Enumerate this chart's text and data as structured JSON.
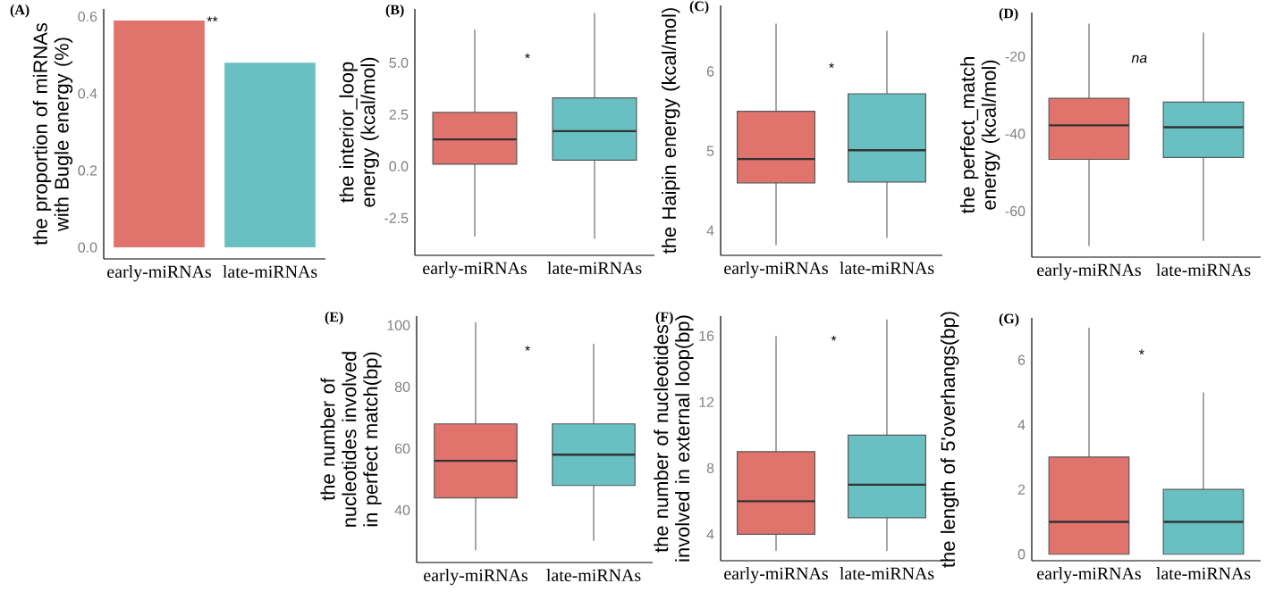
{
  "chart_data": [
    {
      "type": "bar",
      "title": "(A)",
      "ylabel": "the proportion of miRNAs with Bugle energy (%)",
      "categories": [
        "early-miRNAs",
        "late-miRNAs"
      ],
      "values": [
        0.59,
        0.48
      ],
      "colors": [
        "#e0736b",
        "#68c0c3"
      ],
      "ylim": [
        -0.03,
        0.62
      ],
      "yticks": [
        {
          "value": 0,
          "label": "0.0"
        },
        {
          "value": 0.2,
          "label": "0.2"
        },
        {
          "value": 0.4,
          "label": "0.4"
        },
        {
          "value": 0.6,
          "label": "0.6"
        }
      ],
      "annotations": [
        "**"
      ]
    },
    {
      "type": "box",
      "title": "(B)",
      "ylabel": "the interior_loop energy (kcal/mol)",
      "categories": [
        "early-miRNAs",
        "late-miRNAs"
      ],
      "colors": [
        "#e0736b",
        "#68c0c3"
      ],
      "boxes": [
        {
          "low": -3.4,
          "q1": 0.1,
          "median": 1.3,
          "q3": 2.6,
          "high": 6.6
        },
        {
          "low": -3.5,
          "q1": 0.3,
          "median": 1.7,
          "q3": 3.3,
          "high": 7.4
        }
      ],
      "ylim": [
        -4.3,
        7.6
      ],
      "yticks": [
        -2.5,
        {
          "value": 0,
          "label": "0.0"
        },
        2.5,
        {
          "value": 5,
          "label": "5.0"
        }
      ],
      "annotations": [
        "*"
      ]
    },
    {
      "type": "box",
      "title": "(C)",
      "ylabel": "the Haipin energy (kcal/mol)",
      "categories": [
        "early-miRNAs",
        "late-miRNAs"
      ],
      "colors": [
        "#e0736b",
        "#68c0c3"
      ],
      "boxes": [
        {
          "low": 3.82,
          "q1": 4.6,
          "median": 4.9,
          "q3": 5.5,
          "high": 6.6
        },
        {
          "low": 3.91,
          "q1": 4.61,
          "median": 5.01,
          "q3": 5.72,
          "high": 6.51
        }
      ],
      "ylim": [
        3.69,
        6.83
      ],
      "yticks": [
        4,
        5,
        6
      ],
      "annotations": [
        "*"
      ]
    },
    {
      "type": "box",
      "title": "(D)",
      "ylabel": "the perfect_match energy (kcal/mol)",
      "categories": [
        "early-miRNAs",
        "late-miRNAs"
      ],
      "colors": [
        "#e0736b",
        "#68c0c3"
      ],
      "boxes": [
        {
          "low": -69,
          "q1": -46.6,
          "median": -37.8,
          "q3": -30.8,
          "high": -11.5
        },
        {
          "low": -67.7,
          "q1": -46.1,
          "median": -38.3,
          "q3": -31.8,
          "high": -13.8
        }
      ],
      "ylim": [
        -71.9,
        -8.6
      ],
      "yticks": [
        -60,
        -40,
        -20
      ],
      "annotations": [
        "na"
      ]
    },
    {
      "type": "box",
      "title": "(E)",
      "ylabel": "the number of nucleotides involved in perfect match(bp)",
      "categories": [
        "early-miRNAs",
        "late-miRNAs"
      ],
      "colors": [
        "#e0736b",
        "#68c0c3"
      ],
      "boxes": [
        {
          "low": 27,
          "q1": 44,
          "median": 56,
          "q3": 68,
          "high": 101
        },
        {
          "low": 30,
          "q1": 48,
          "median": 58,
          "q3": 68,
          "high": 94
        }
      ],
      "ylim": [
        23,
        103
      ],
      "yticks": [
        40,
        60,
        80,
        100
      ],
      "annotations": [
        "*"
      ]
    },
    {
      "type": "box",
      "title": "(F)",
      "ylabel": "the number of nucleotides involved in external loop(bp)",
      "categories": [
        "early-miRNAs",
        "late-miRNAs"
      ],
      "colors": [
        "#e0736b",
        "#68c0c3"
      ],
      "boxes": [
        {
          "low": 3,
          "q1": 4,
          "median": 6,
          "q3": 9,
          "high": 16
        },
        {
          "low": 3,
          "q1": 5,
          "median": 7,
          "q3": 10,
          "high": 17
        }
      ],
      "ylim": [
        2.4,
        17.2
      ],
      "yticks": [
        4,
        8,
        12,
        16
      ],
      "annotations": [
        "*"
      ]
    },
    {
      "type": "box",
      "title": "(G)",
      "ylabel": "the length of 5'overhangs(bp)",
      "categories": [
        "early-miRNAs",
        "late-miRNAs"
      ],
      "colors": [
        "#e0736b",
        "#68c0c3"
      ],
      "boxes": [
        {
          "low": 0,
          "q1": 0,
          "median": 1,
          "q3": 3,
          "high": 7
        },
        {
          "low": 0,
          "q1": 0,
          "median": 1,
          "q3": 2,
          "high": 5
        }
      ],
      "ylim": [
        -0.2,
        7.3
      ],
      "yticks": [
        0,
        2,
        4,
        6
      ],
      "annotations": [
        "*"
      ]
    }
  ]
}
